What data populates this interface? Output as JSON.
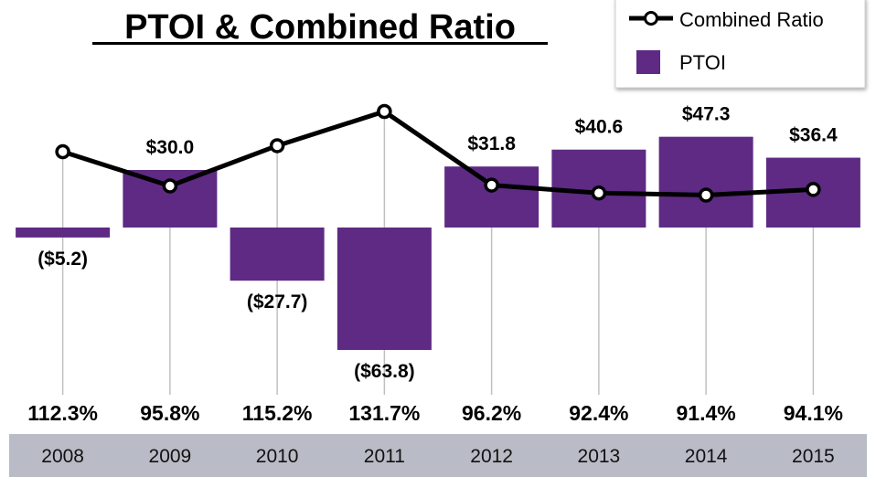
{
  "title": "PTOI & Combined Ratio",
  "legend": {
    "line_label": "Combined Ratio",
    "bar_label": "PTOI"
  },
  "colors": {
    "bar": "#5e2a84",
    "line": "#000000",
    "marker_fill": "#ffffff",
    "axis_band": "#b9bcc6",
    "drop_line": "#c0c0c0"
  },
  "chart_data": {
    "type": "bar",
    "title": "PTOI & Combined Ratio",
    "categories": [
      "2008",
      "2009",
      "2010",
      "2011",
      "2012",
      "2013",
      "2014",
      "2015"
    ],
    "series": [
      {
        "name": "PTOI",
        "type": "bar",
        "values": [
          -5.2,
          30.0,
          -27.7,
          -63.8,
          31.8,
          40.6,
          47.3,
          36.4
        ],
        "labels": [
          "($5.2)",
          "$30.0",
          "($27.7)",
          "($63.8)",
          "$31.8",
          "$40.6",
          "$47.3",
          "$36.4"
        ]
      },
      {
        "name": "Combined Ratio",
        "type": "line",
        "values": [
          112.3,
          95.8,
          115.2,
          131.7,
          96.2,
          92.4,
          91.4,
          94.1
        ],
        "labels": [
          "112.3%",
          "95.8%",
          "115.2%",
          "131.7%",
          "96.2%",
          "92.4%",
          "91.4%",
          "94.1%"
        ]
      }
    ],
    "legend_position": "top-right",
    "grid": false
  }
}
